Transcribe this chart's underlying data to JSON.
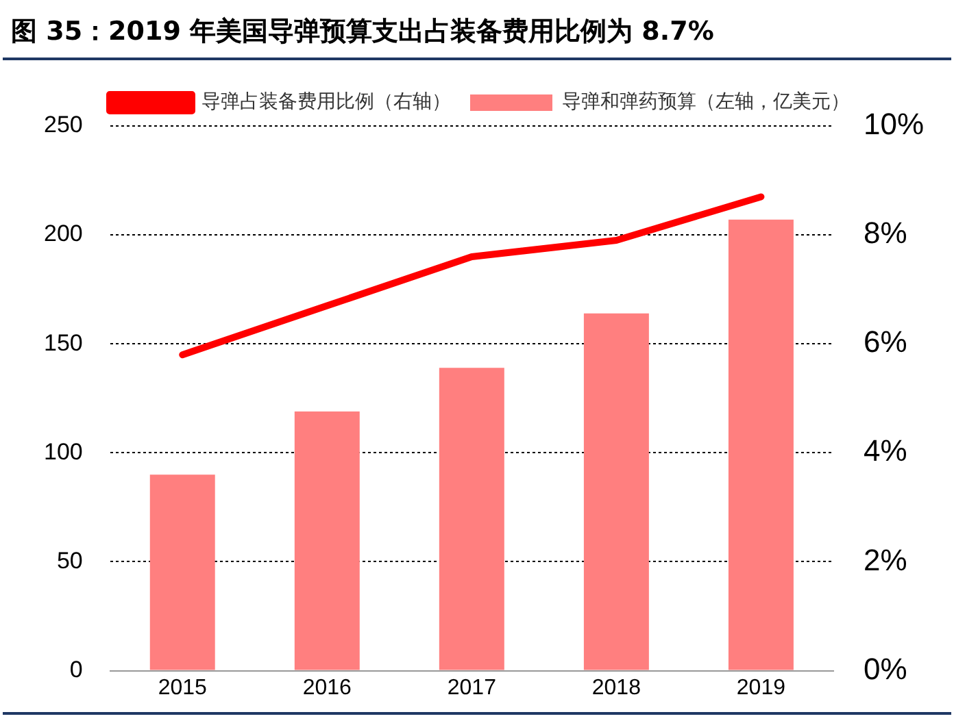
{
  "chart_data": {
    "type": "bar",
    "title": "图 35：2019 年美国导弹预算支出占装备费用比例为 8.7%",
    "categories": [
      "2015",
      "2016",
      "2017",
      "2018",
      "2019"
    ],
    "series": [
      {
        "name": "导弹和弹药预算（左轴，亿美元）",
        "color": "#ff7f7f",
        "values": [
          90,
          119,
          139,
          164,
          207
        ]
      },
      {
        "name": "导弹占装备费用比例（右轴）",
        "type": "line",
        "axis": "y2",
        "color": "#ff0000",
        "values": [
          5.8,
          6.7,
          7.6,
          7.9,
          8.7
        ]
      }
    ],
    "ylim": [
      0,
      250
    ],
    "yticks": [
      0,
      50,
      100,
      150,
      200,
      250
    ],
    "y2lim": [
      0,
      10
    ],
    "y2ticks": [
      {
        "value": 0,
        "label": "0%"
      },
      {
        "value": 2,
        "label": "2%"
      },
      {
        "value": 4,
        "label": "4%"
      },
      {
        "value": 6,
        "label": "6%"
      },
      {
        "value": 8,
        "label": "8%"
      },
      {
        "value": 10,
        "label": "10%"
      }
    ],
    "grid": "y",
    "legend": "top",
    "marker": "none",
    "line_style": "solid"
  }
}
